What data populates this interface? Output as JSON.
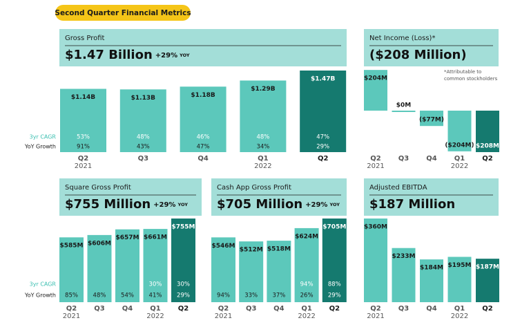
{
  "header": {
    "title": "Second Quarter Financial Metrics"
  },
  "chart_data": [
    {
      "type": "bar",
      "title": "Gross Profit",
      "headline": "$1.47 Billion",
      "growth": "+29%",
      "growth_unit": "YOY",
      "categories": [
        "Q2",
        "Q3",
        "Q4",
        "Q1",
        "Q2"
      ],
      "years": [
        "2021",
        null,
        null,
        "2022",
        null
      ],
      "values": [
        1.14,
        1.13,
        1.18,
        1.29,
        1.47
      ],
      "value_labels": [
        "$1.14B",
        "$1.13B",
        "$1.18B",
        "$1.29B",
        "$1.47B"
      ],
      "colors": [
        "#5cc8bb",
        "#5cc8bb",
        "#5cc8bb",
        "#5cc8bb",
        "#157a6f"
      ],
      "rows": [
        {
          "label": "3yr CAGR",
          "values": [
            "53%",
            "48%",
            "46%",
            "48%",
            "47%"
          ]
        },
        {
          "label": "YoY Growth",
          "values": [
            "91%",
            "43%",
            "47%",
            "34%",
            "29%"
          ]
        }
      ]
    },
    {
      "type": "bar",
      "title": "Net Income (Loss)*",
      "headline": "($208 Million)",
      "note": [
        "*Attributable to",
        "common stockholders"
      ],
      "categories": [
        "Q2",
        "Q3",
        "Q4",
        "Q1",
        "Q2"
      ],
      "years": [
        "2021",
        null,
        null,
        "2022",
        null
      ],
      "values": [
        204,
        0,
        -77,
        -204,
        -208
      ],
      "value_labels": [
        "$204M",
        "$0M",
        "($77M)",
        "($204M)",
        "($208M)"
      ],
      "colors": [
        "#5cc8bb",
        "#5cc8bb",
        "#5cc8bb",
        "#5cc8bb",
        "#157a6f"
      ]
    },
    {
      "type": "bar",
      "title": "Square Gross Profit",
      "headline": "$755 Million",
      "growth": "+29%",
      "growth_unit": "YOY",
      "categories": [
        "Q2",
        "Q3",
        "Q4",
        "Q1",
        "Q2"
      ],
      "years": [
        "2021",
        null,
        null,
        "2022",
        null
      ],
      "values": [
        585,
        606,
        657,
        661,
        755
      ],
      "value_labels": [
        "$585M",
        "$606M",
        "$657M",
        "$661M",
        "$755M"
      ],
      "colors": [
        "#5cc8bb",
        "#5cc8bb",
        "#5cc8bb",
        "#5cc8bb",
        "#157a6f"
      ],
      "rows": [
        {
          "label": "3yr CAGR",
          "values": [
            null,
            null,
            null,
            "30%",
            "30%"
          ]
        },
        {
          "label": "YoY Growth",
          "values": [
            "85%",
            "48%",
            "54%",
            "41%",
            "29%"
          ]
        }
      ]
    },
    {
      "type": "bar",
      "title": "Cash App Gross Profit",
      "headline": "$705 Million",
      "growth": "+29%",
      "growth_unit": "YOY",
      "categories": [
        "Q2",
        "Q3",
        "Q4",
        "Q1",
        "Q2"
      ],
      "years": [
        "2021",
        null,
        null,
        "2022",
        null
      ],
      "values": [
        546,
        512,
        518,
        624,
        705
      ],
      "value_labels": [
        "$546M",
        "$512M",
        "$518M",
        "$624M",
        "$705M"
      ],
      "colors": [
        "#5cc8bb",
        "#5cc8bb",
        "#5cc8bb",
        "#5cc8bb",
        "#157a6f"
      ],
      "rows": [
        {
          "values": [
            null,
            null,
            null,
            "94%",
            "88%"
          ]
        },
        {
          "values": [
            "94%",
            "33%",
            "37%",
            "26%",
            "29%"
          ]
        }
      ]
    },
    {
      "type": "bar",
      "title": "Adjusted EBITDA",
      "headline": "$187 Million",
      "categories": [
        "Q2",
        "Q3",
        "Q4",
        "Q1",
        "Q2"
      ],
      "years": [
        "2021",
        null,
        null,
        "2022",
        null
      ],
      "values": [
        360,
        233,
        184,
        195,
        187
      ],
      "value_labels": [
        "$360M",
        "$233M",
        "$184M",
        "$195M",
        "$187M"
      ],
      "colors": [
        "#5cc8bb",
        "#5cc8bb",
        "#5cc8bb",
        "#5cc8bb",
        "#157a6f"
      ]
    }
  ]
}
